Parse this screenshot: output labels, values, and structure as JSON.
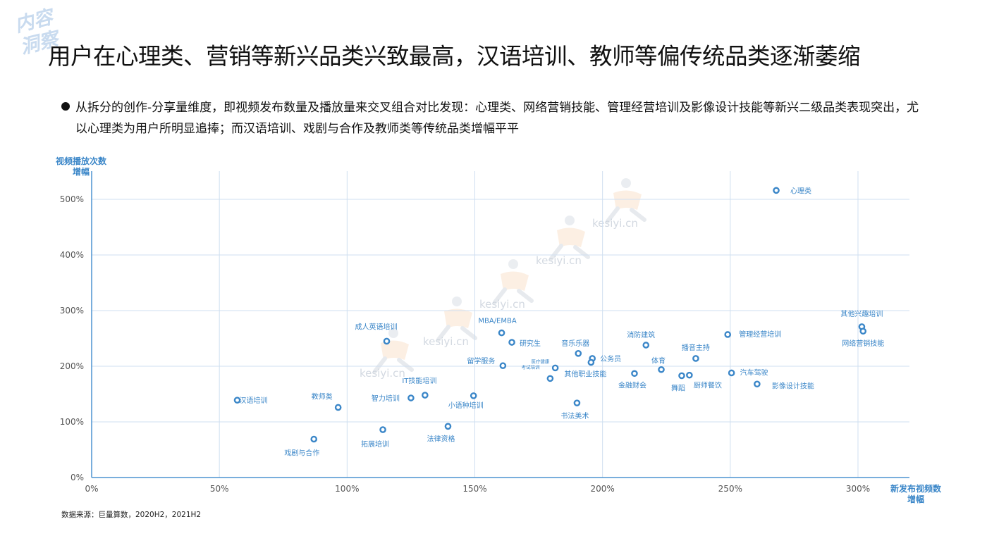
{
  "watermark_text": [
    "内容",
    "洞察"
  ],
  "title": "用户在心理类、营销等新兴品类兴致最高，汉语培训、教师等偏传统品类逐渐萎缩",
  "summary": "从拆分的创作-分享量维度，即视频发布数量及播放量来交叉组合对比发现：心理类、网络营销技能、管理经营培训及影像设计技能等新兴二级品类表现突出，尤以心理类为用户所明显追捧；而汉语培训、戏剧与合作及教师类等传统品类增幅平平",
  "source": "数据来源：巨量算数，2020H2，2021H2",
  "background_watermark": "kesiyi.cn",
  "chart_data": {
    "type": "scatter",
    "xlabel": [
      "新发布视频数",
      "增幅"
    ],
    "ylabel": [
      "视频播放次数",
      "增幅"
    ],
    "xlim": [
      0,
      320
    ],
    "ylim": [
      0,
      540
    ],
    "xticks": [
      0,
      50,
      100,
      150,
      200,
      250,
      300
    ],
    "yticks": [
      0,
      100,
      200,
      300,
      400,
      500
    ],
    "x_tick_labels": [
      "0%",
      "50%",
      "100%",
      "150%",
      "200%",
      "250%",
      "300%"
    ],
    "y_tick_labels": [
      "0%",
      "100%",
      "200%",
      "300%",
      "400%",
      "500%"
    ],
    "grid": true,
    "point_color": "#3a86c8",
    "points": [
      {
        "label": "心理类",
        "x": 268,
        "y": 516
      },
      {
        "label": "其他兴趣培训",
        "x": 301.5,
        "y": 271
      },
      {
        "label": "网络营销技能",
        "x": 302,
        "y": 263
      },
      {
        "label": "管理经营培训",
        "x": 249,
        "y": 257
      },
      {
        "label": "MBA/EMBA",
        "x": 160.5,
        "y": 260
      },
      {
        "label": "成人英语培训",
        "x": 115.5,
        "y": 245
      },
      {
        "label": "研究生",
        "x": 164.5,
        "y": 243
      },
      {
        "label": "消防建筑",
        "x": 217,
        "y": 238
      },
      {
        "label": "音乐乐器",
        "x": 190.5,
        "y": 223
      },
      {
        "label": "播音主持",
        "x": 236.5,
        "y": 214
      },
      {
        "label": "公务员",
        "x": 196,
        "y": 214
      },
      {
        "label": "医疗健康",
        "x": 195.5,
        "y": 207
      },
      {
        "label": "留学服务",
        "x": 161,
        "y": 201
      },
      {
        "label": "考试培训",
        "x": 181.5,
        "y": 197
      },
      {
        "label": "体育",
        "x": 223,
        "y": 194
      },
      {
        "label": "汽车驾驶",
        "x": 250.5,
        "y": 188
      },
      {
        "label": "金融财会",
        "x": 212.5,
        "y": 187
      },
      {
        "label": "厨师餐饮",
        "x": 234,
        "y": 184
      },
      {
        "label": "舞蹈",
        "x": 231,
        "y": 183
      },
      {
        "label": "其他职业技能",
        "x": 179.5,
        "y": 178
      },
      {
        "label": "影像设计技能",
        "x": 260.5,
        "y": 168
      },
      {
        "label": "小语种培训",
        "x": 149.5,
        "y": 147
      },
      {
        "label": "IT技能培训",
        "x": 130.5,
        "y": 148
      },
      {
        "label": "智力培训",
        "x": 125,
        "y": 143
      },
      {
        "label": "汉语培训",
        "x": 57,
        "y": 139
      },
      {
        "label": "书法美术",
        "x": 190,
        "y": 134
      },
      {
        "label": "教师类",
        "x": 96.5,
        "y": 126
      },
      {
        "label": "法律资格",
        "x": 139.5,
        "y": 92
      },
      {
        "label": "拓展培训",
        "x": 114,
        "y": 86
      },
      {
        "label": "戏剧与合作",
        "x": 87,
        "y": 69
      }
    ]
  }
}
